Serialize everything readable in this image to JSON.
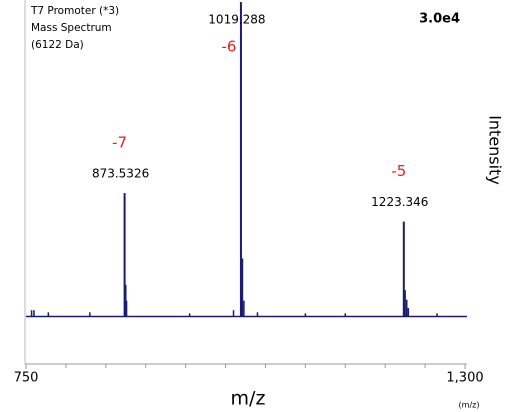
{
  "chart_data": {
    "type": "stick",
    "title_lines": [
      "T7 Promoter (*3)",
      "Mass Spectrum",
      "(6122 Da)"
    ],
    "scale_label": "3.0e4",
    "x_label": "m/z",
    "x_unit": "(m/z)",
    "y_label": "Intensity",
    "xlim": [
      750,
      1300
    ],
    "ylim": [
      -4500,
      30000
    ],
    "xticks": [
      750,
      {
        "value": 1300,
        "label": "1,300"
      }
    ],
    "minor_xticks": [
      800,
      850,
      900,
      950,
      1000,
      1050,
      1100,
      1150,
      1200,
      1250
    ],
    "color": "#1a1a6e",
    "annotation_color": "#e8201a",
    "peaks": {
      "x": [
        873.5326,
        1019.288,
        1223.346
      ],
      "values": [
        11700,
        29800,
        9000
      ],
      "charges": [
        -7,
        -6,
        -5
      ]
    },
    "series": [
      {
        "x": [
          757,
          760,
          778,
          830,
          875,
          876,
          955,
          1010,
          1020.3,
          1021.2,
          1023,
          1040,
          1100,
          1150,
          1225,
          1227,
          1229,
          1265
        ],
        "values": [
          600,
          600,
          400,
          400,
          3000,
          1500,
          300,
          600,
          2000,
          5500,
          1500,
          400,
          300,
          300,
          2500,
          1600,
          800,
          300
        ]
      }
    ]
  }
}
